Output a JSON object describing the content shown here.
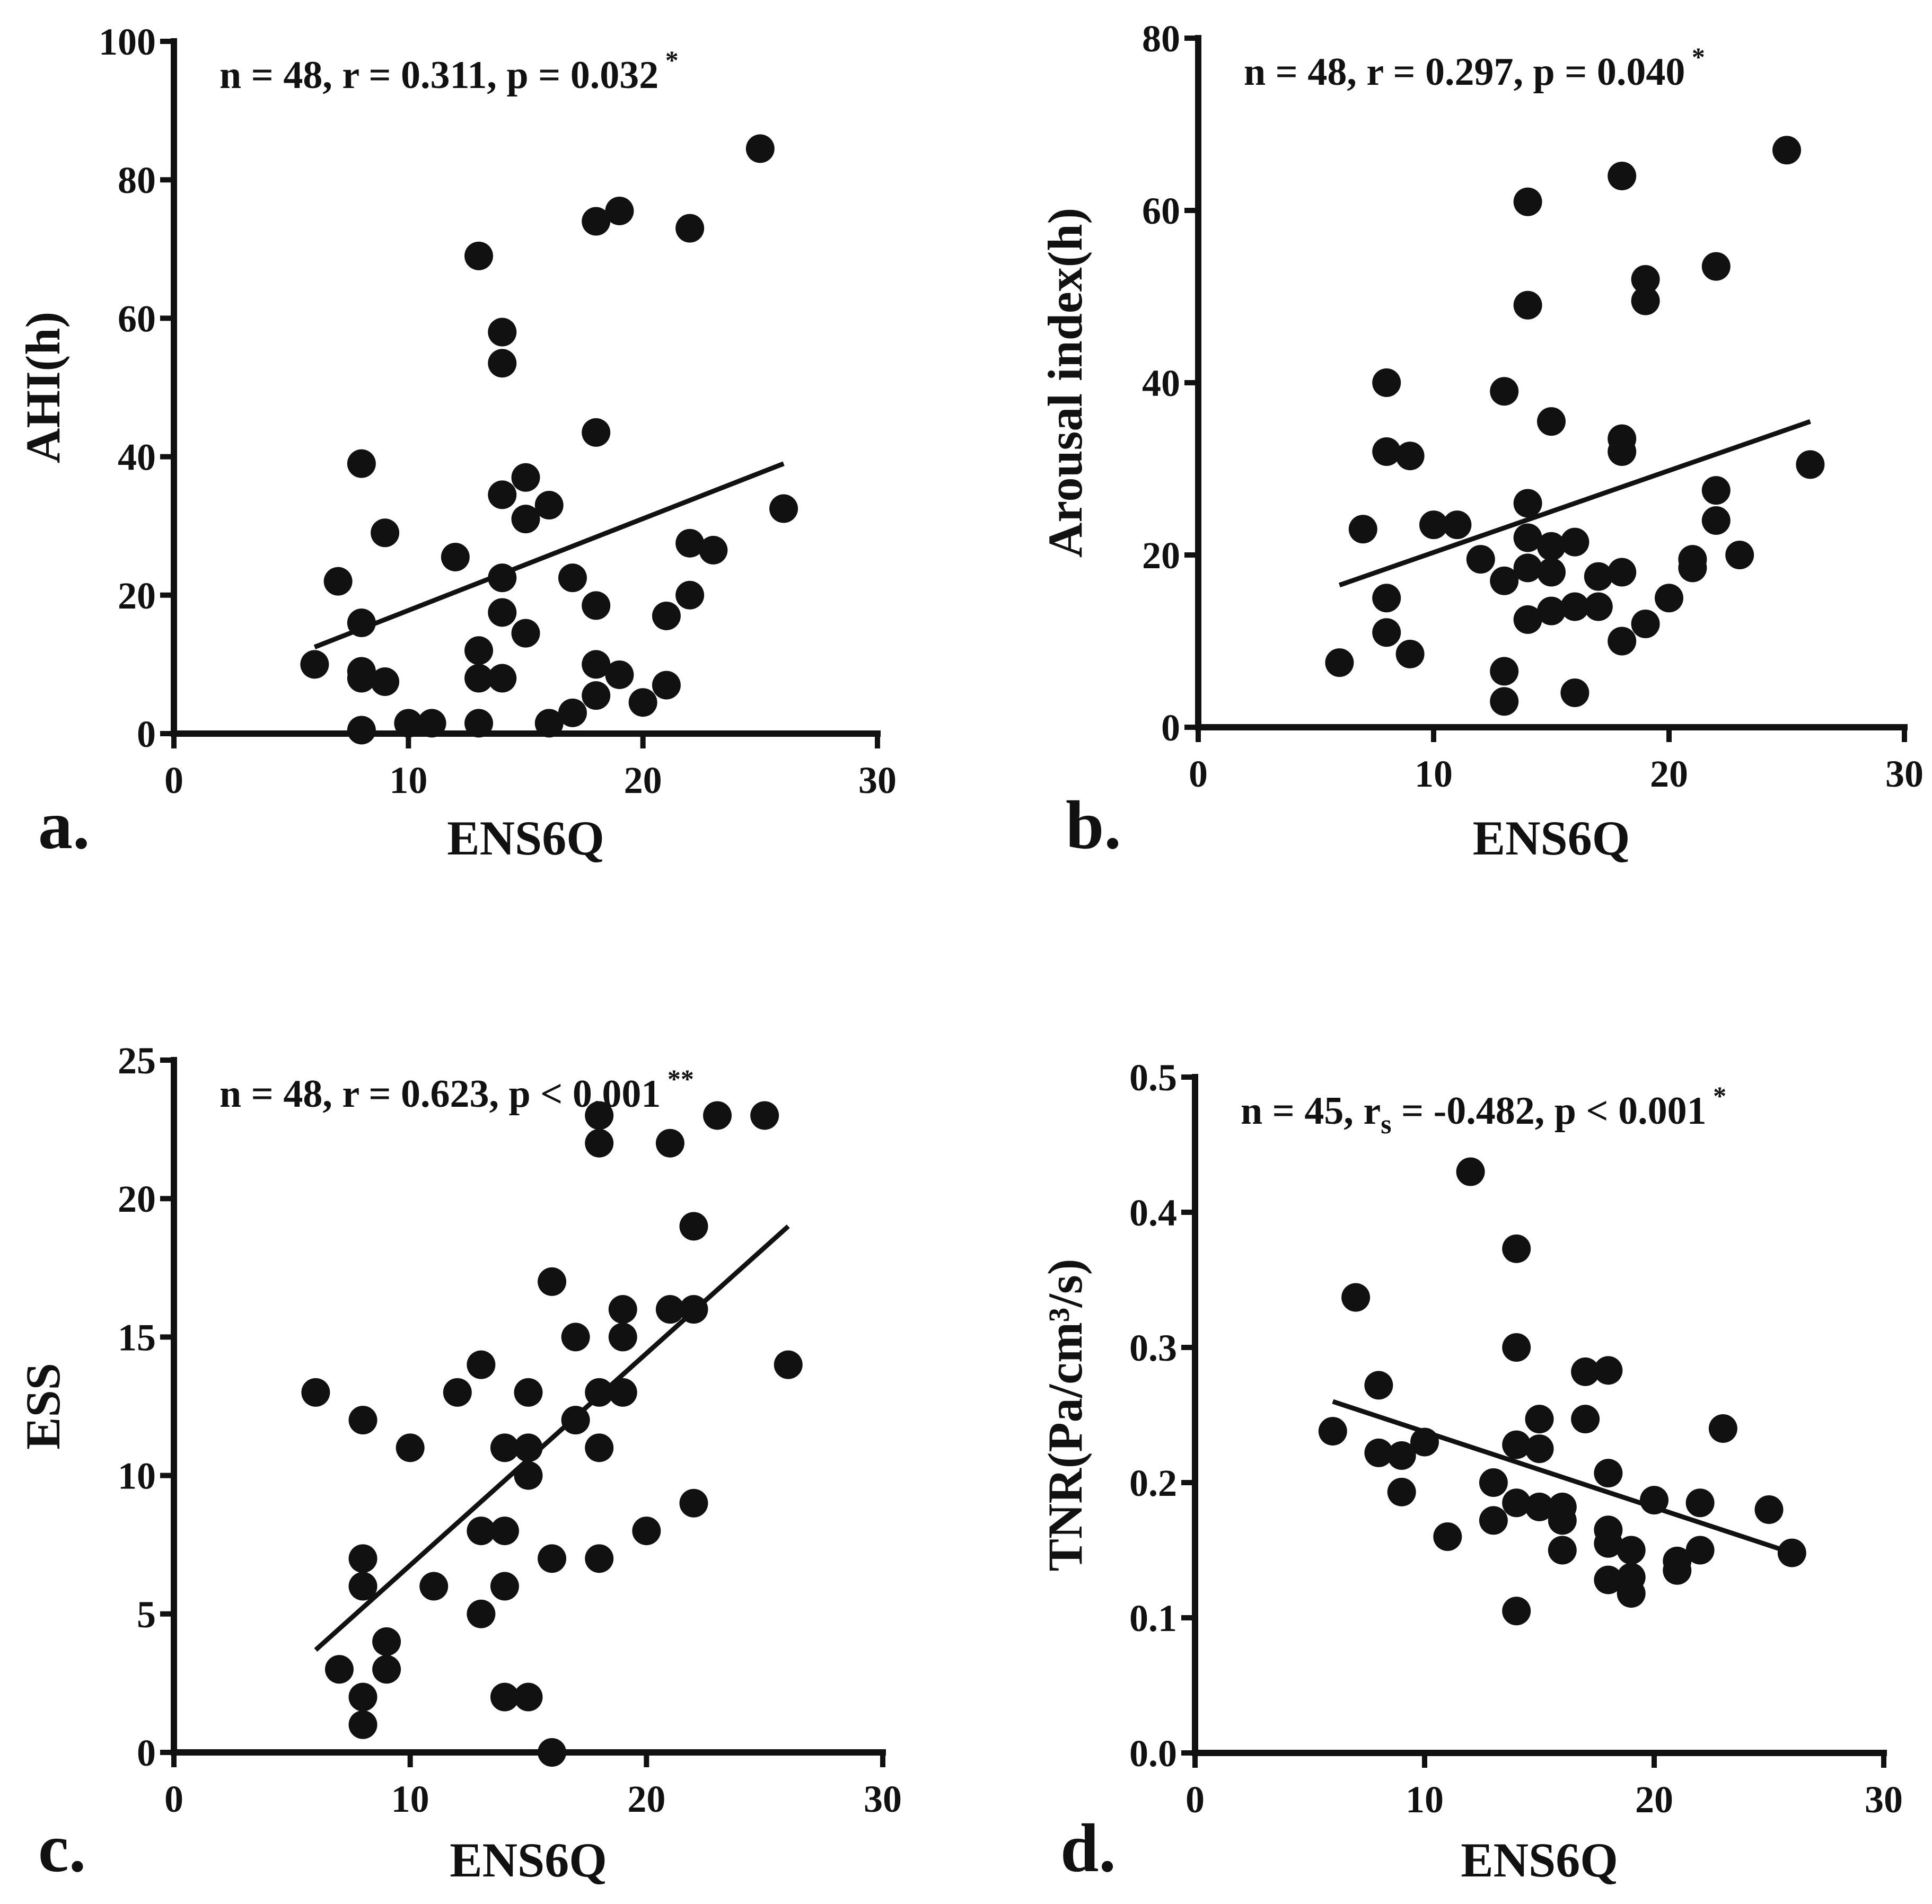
{
  "chart_data": [
    {
      "type": "scatter",
      "panel": "a.",
      "xlabel": "ENS6Q",
      "ylabel": "AHI(h)",
      "xlim": [
        0,
        30
      ],
      "ylim": [
        0,
        100
      ],
      "xticks": [
        "0",
        "10",
        "20",
        "30"
      ],
      "yticks": [
        "0",
        "20",
        "40",
        "60",
        "80",
        "100"
      ],
      "xtick_values": [
        0,
        10,
        20,
        30
      ],
      "ytick_values": [
        0,
        20,
        40,
        60,
        80,
        100
      ],
      "annotation": {
        "n": "48",
        "corr_symbol": "r",
        "corr_sub": "",
        "corr": "0.311",
        "p_op": "=",
        "p": "0.032",
        "sig": "*"
      },
      "regression": [
        [
          6,
          12.5
        ],
        [
          26,
          39
        ]
      ],
      "points": [
        [
          6,
          10
        ],
        [
          7,
          22
        ],
        [
          8,
          39
        ],
        [
          8,
          16
        ],
        [
          8,
          9
        ],
        [
          8,
          8
        ],
        [
          8,
          0.5
        ],
        [
          9,
          29
        ],
        [
          9,
          7.5
        ],
        [
          10,
          1.5
        ],
        [
          11,
          1.5
        ],
        [
          12,
          25.5
        ],
        [
          13,
          69
        ],
        [
          13,
          12
        ],
        [
          13,
          8
        ],
        [
          13,
          1.5
        ],
        [
          14,
          58
        ],
        [
          14,
          53.5
        ],
        [
          14,
          34.5
        ],
        [
          14,
          22.5
        ],
        [
          14,
          17.5
        ],
        [
          14,
          8
        ],
        [
          15,
          37
        ],
        [
          15,
          31
        ],
        [
          15,
          14.5
        ],
        [
          16,
          33
        ],
        [
          16,
          1.5
        ],
        [
          17,
          22.5
        ],
        [
          17,
          3
        ],
        [
          18,
          74
        ],
        [
          18,
          43.5
        ],
        [
          18,
          18.5
        ],
        [
          18,
          10
        ],
        [
          18,
          5.5
        ],
        [
          19,
          75.5
        ],
        [
          19,
          8.5
        ],
        [
          20,
          4.5
        ],
        [
          21,
          17
        ],
        [
          21,
          7
        ],
        [
          22,
          73
        ],
        [
          22,
          27.5
        ],
        [
          22,
          20
        ],
        [
          23,
          26.5
        ],
        [
          25,
          84.5
        ],
        [
          26,
          32.5
        ]
      ]
    },
    {
      "type": "scatter",
      "panel": "b.",
      "xlabel": "ENS6Q",
      "ylabel": "Arousal index(h)",
      "xlim": [
        0,
        30
      ],
      "ylim": [
        0,
        80
      ],
      "xticks": [
        "0",
        "10",
        "20",
        "30"
      ],
      "yticks": [
        "0",
        "20",
        "40",
        "60",
        "80"
      ],
      "xtick_values": [
        0,
        10,
        20,
        30
      ],
      "ytick_values": [
        0,
        20,
        40,
        60,
        80
      ],
      "annotation": {
        "n": "48",
        "corr_symbol": "r",
        "corr_sub": "",
        "corr": "0.297",
        "p_op": "=",
        "p": "0.040",
        "sig": "*"
      },
      "regression": [
        [
          6,
          16.5
        ],
        [
          26,
          35.5
        ]
      ],
      "points": [
        [
          6,
          7.5
        ],
        [
          7,
          23
        ],
        [
          8,
          40
        ],
        [
          8,
          32
        ],
        [
          8,
          15
        ],
        [
          8,
          11
        ],
        [
          9,
          31.5
        ],
        [
          9,
          8.5
        ],
        [
          10,
          23.5
        ],
        [
          11,
          23.5
        ],
        [
          12,
          19.5
        ],
        [
          13,
          39
        ],
        [
          13,
          17
        ],
        [
          13,
          6.5
        ],
        [
          13,
          3
        ],
        [
          14,
          61
        ],
        [
          14,
          49
        ],
        [
          14,
          26
        ],
        [
          14,
          22
        ],
        [
          14,
          18.5
        ],
        [
          14,
          12.5
        ],
        [
          15,
          35.5
        ],
        [
          15,
          21
        ],
        [
          15,
          18
        ],
        [
          15,
          13.5
        ],
        [
          16,
          21.5
        ],
        [
          16,
          14
        ],
        [
          16,
          4
        ],
        [
          17,
          17.5
        ],
        [
          17,
          14
        ],
        [
          18,
          64
        ],
        [
          18,
          33.5
        ],
        [
          18,
          32
        ],
        [
          18,
          18
        ],
        [
          18,
          10
        ],
        [
          19,
          52
        ],
        [
          19,
          49.5
        ],
        [
          19,
          12
        ],
        [
          20,
          15
        ],
        [
          21,
          19.5
        ],
        [
          21,
          18.5
        ],
        [
          22,
          53.5
        ],
        [
          22,
          27.5
        ],
        [
          22,
          24
        ],
        [
          23,
          20
        ],
        [
          25,
          67
        ],
        [
          26,
          30.5
        ]
      ]
    },
    {
      "type": "scatter",
      "panel": "c.",
      "xlabel": "ENS6Q",
      "ylabel": "ESS",
      "xlim": [
        0,
        30
      ],
      "ylim": [
        0,
        25
      ],
      "xticks": [
        "0",
        "10",
        "20",
        "30"
      ],
      "yticks": [
        "0",
        "5",
        "10",
        "15",
        "20",
        "25"
      ],
      "xtick_values": [
        0,
        10,
        20,
        30
      ],
      "ytick_values": [
        0,
        5,
        10,
        15,
        20,
        25
      ],
      "annotation": {
        "n": "48",
        "corr_symbol": "r",
        "corr_sub": "",
        "corr": "0.623",
        "p_op": "<",
        "p": "0.001",
        "sig": "**"
      },
      "regression": [
        [
          6,
          3.7
        ],
        [
          26,
          19
        ]
      ],
      "points": [
        [
          6,
          13
        ],
        [
          7,
          3
        ],
        [
          8,
          12
        ],
        [
          8,
          7
        ],
        [
          8,
          6
        ],
        [
          8,
          2
        ],
        [
          8,
          1
        ],
        [
          9,
          4
        ],
        [
          9,
          3
        ],
        [
          10,
          11
        ],
        [
          11,
          6
        ],
        [
          12,
          13
        ],
        [
          13,
          14
        ],
        [
          13,
          8
        ],
        [
          13,
          5
        ],
        [
          14,
          11
        ],
        [
          14,
          8
        ],
        [
          14,
          6
        ],
        [
          14,
          2
        ],
        [
          15,
          13
        ],
        [
          15,
          11
        ],
        [
          15,
          10
        ],
        [
          15,
          2
        ],
        [
          16,
          17
        ],
        [
          16,
          7
        ],
        [
          16,
          0
        ],
        [
          17,
          15
        ],
        [
          17,
          12
        ],
        [
          18,
          23
        ],
        [
          18,
          22
        ],
        [
          18,
          13
        ],
        [
          18,
          11
        ],
        [
          18,
          7
        ],
        [
          19,
          16
        ],
        [
          19,
          15
        ],
        [
          19,
          13
        ],
        [
          20,
          8
        ],
        [
          21,
          22
        ],
        [
          21,
          16
        ],
        [
          22,
          19
        ],
        [
          22,
          16
        ],
        [
          22,
          9
        ],
        [
          23,
          23
        ],
        [
          25,
          23
        ],
        [
          26,
          14
        ]
      ]
    },
    {
      "type": "scatter",
      "panel": "d.",
      "xlabel": "ENS6Q",
      "ylabel": "TNR(Pa/cm³/s)",
      "xlim": [
        0,
        30
      ],
      "ylim": [
        0,
        0.5
      ],
      "xticks": [
        "0",
        "10",
        "20",
        "30"
      ],
      "yticks": [
        "0.0",
        "0.1",
        "0.2",
        "0.3",
        "0.4",
        "0.5"
      ],
      "xtick_values": [
        0,
        10,
        20,
        30
      ],
      "ytick_values": [
        0,
        0.1,
        0.2,
        0.3,
        0.4,
        0.5
      ],
      "annotation": {
        "n": "45",
        "corr_symbol": "r",
        "corr_sub": "s",
        "corr": "-0.482",
        "p_op": "<",
        "p": "0.001",
        "sig": "*"
      },
      "regression": [
        [
          6,
          0.26
        ],
        [
          26,
          0.148
        ]
      ],
      "points": [
        [
          6,
          0.238
        ],
        [
          7,
          0.337
        ],
        [
          8,
          0.272
        ],
        [
          8,
          0.222
        ],
        [
          9,
          0.22
        ],
        [
          9,
          0.193
        ],
        [
          10,
          0.23
        ],
        [
          11,
          0.16
        ],
        [
          12,
          0.43
        ],
        [
          13,
          0.2
        ],
        [
          13,
          0.172
        ],
        [
          14,
          0.373
        ],
        [
          14,
          0.3
        ],
        [
          14,
          0.228
        ],
        [
          14,
          0.185
        ],
        [
          14,
          0.105
        ],
        [
          15,
          0.247
        ],
        [
          15,
          0.225
        ],
        [
          15,
          0.182
        ],
        [
          16,
          0.182
        ],
        [
          16,
          0.172
        ],
        [
          16,
          0.15
        ],
        [
          17,
          0.282
        ],
        [
          17,
          0.247
        ],
        [
          18,
          0.283
        ],
        [
          18,
          0.207
        ],
        [
          18,
          0.165
        ],
        [
          18,
          0.155
        ],
        [
          18,
          0.128
        ],
        [
          19,
          0.15
        ],
        [
          19,
          0.13
        ],
        [
          19,
          0.118
        ],
        [
          20,
          0.187
        ],
        [
          21,
          0.142
        ],
        [
          21,
          0.135
        ],
        [
          22,
          0.185
        ],
        [
          22,
          0.15
        ],
        [
          23,
          0.24
        ],
        [
          25,
          0.18
        ],
        [
          26,
          0.148
        ]
      ]
    }
  ]
}
